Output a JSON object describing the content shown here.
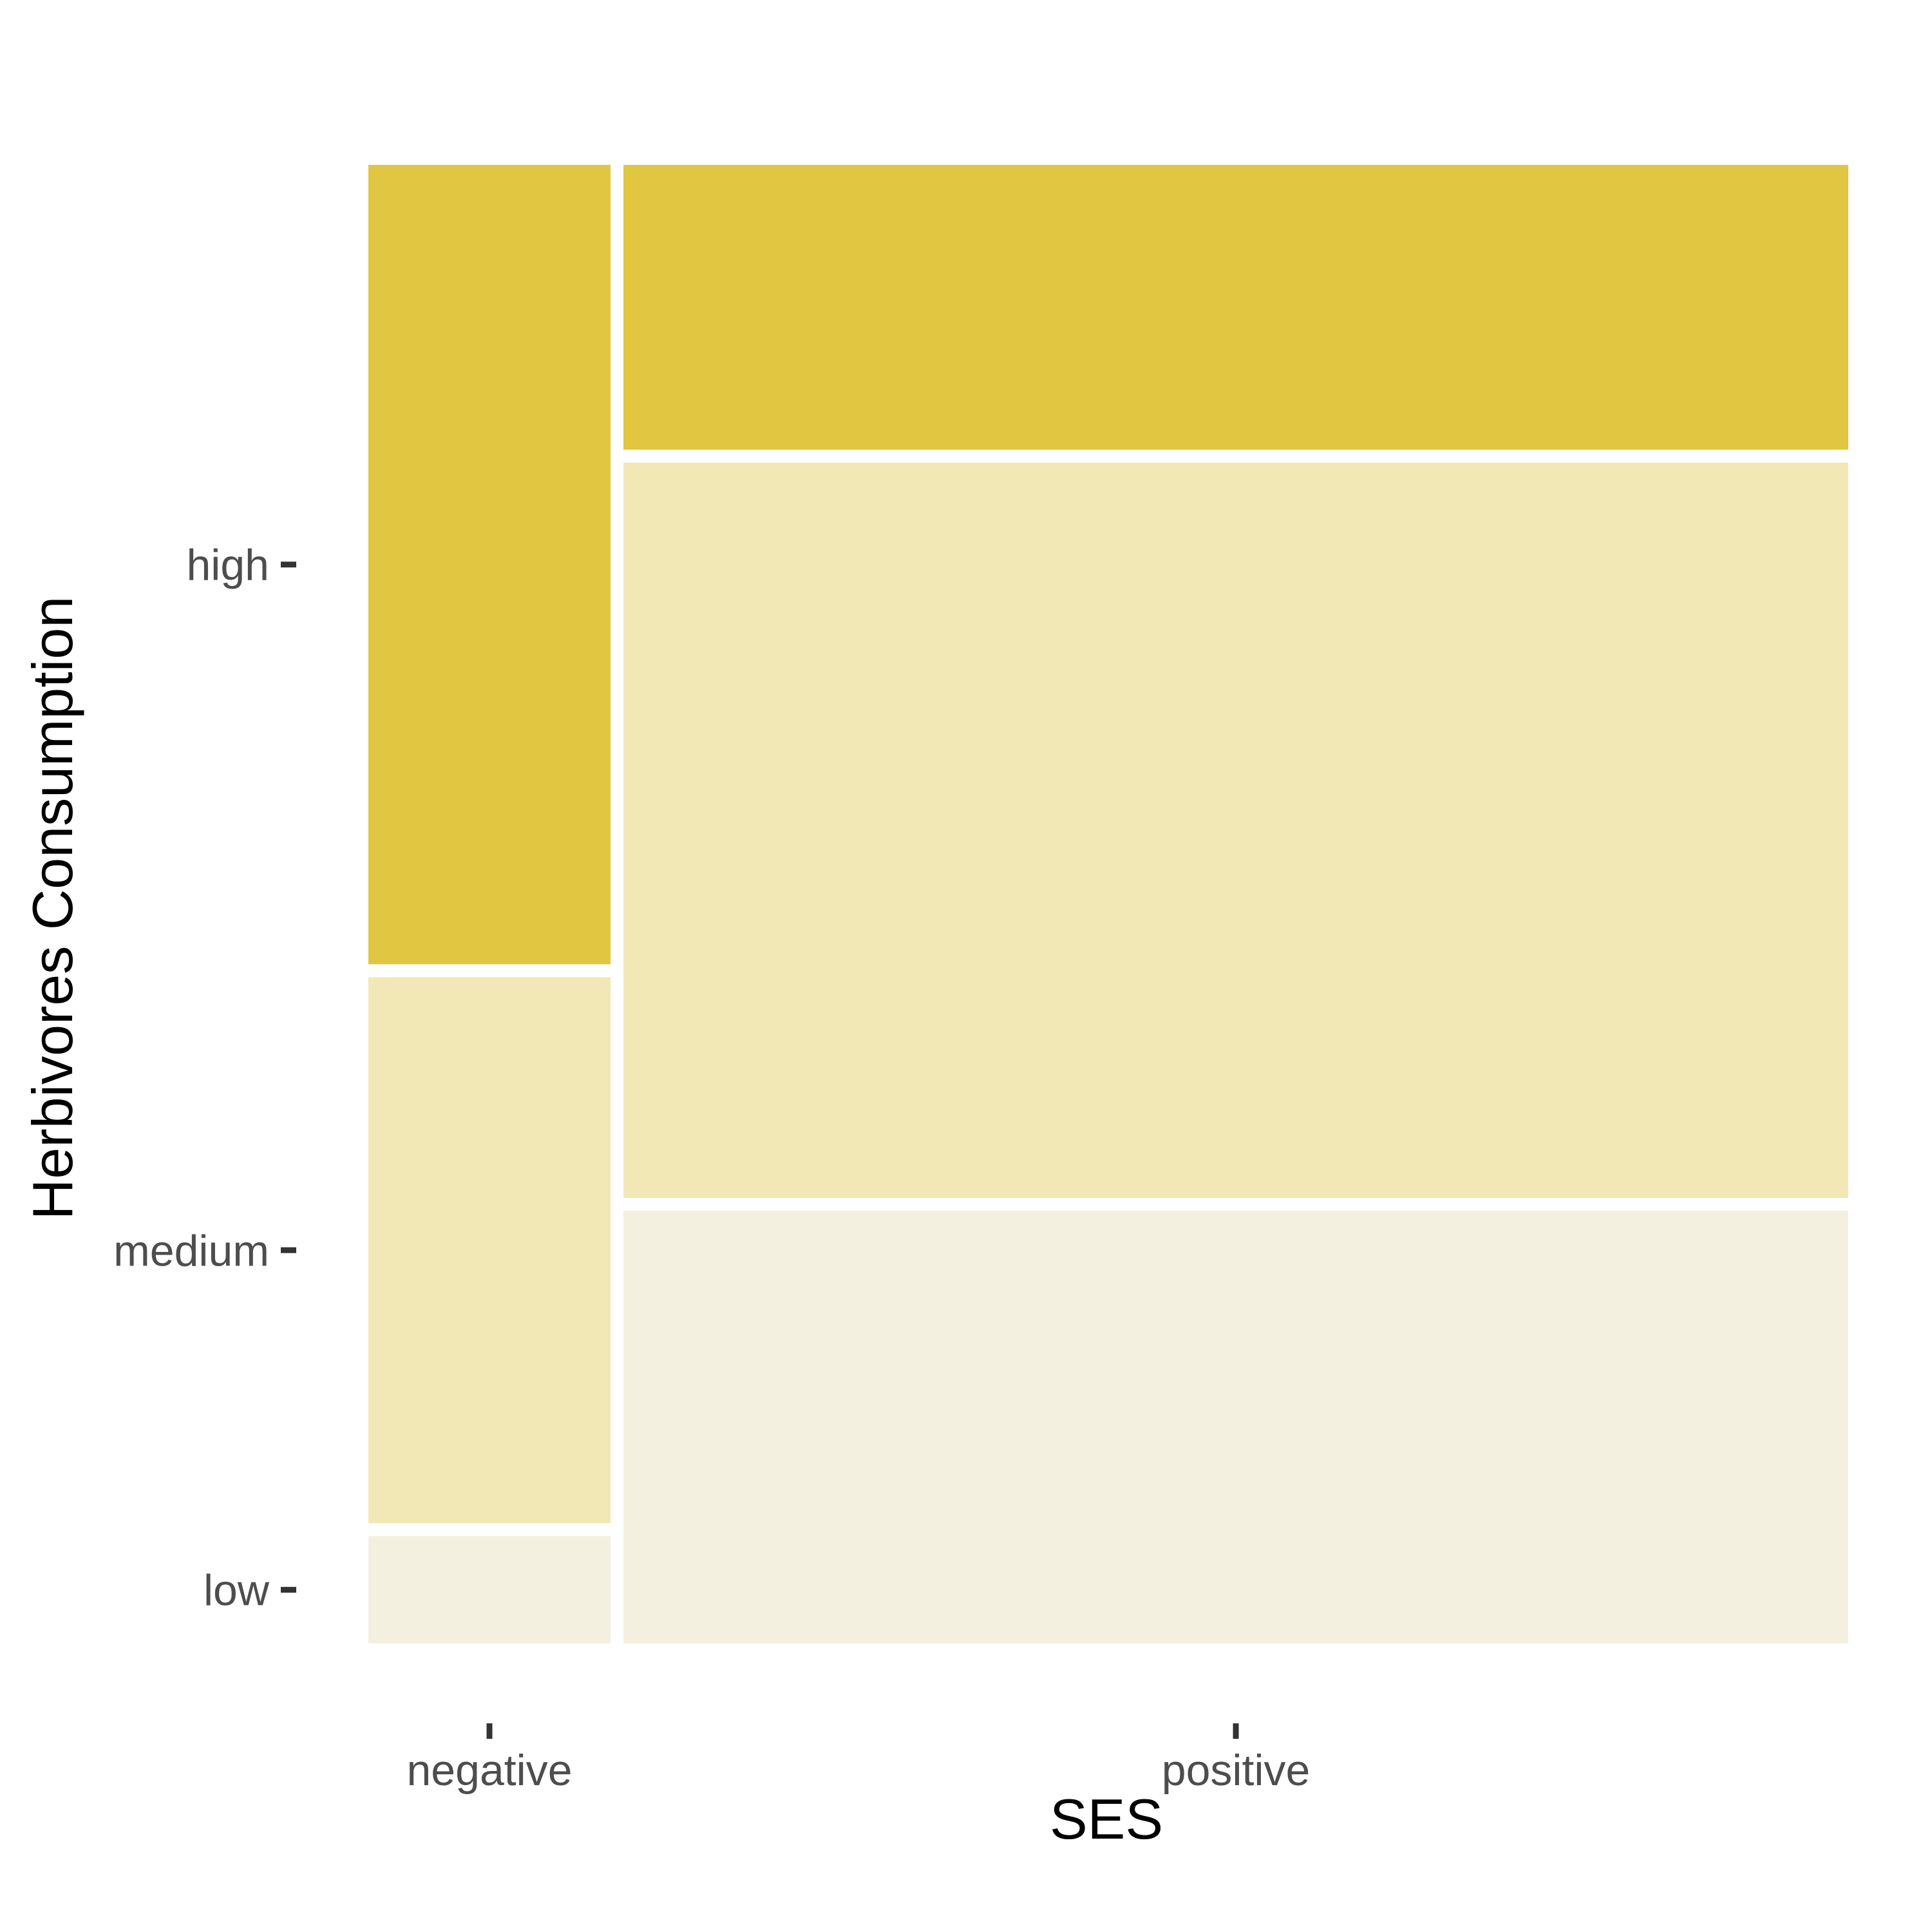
{
  "chart_data": {
    "type": "mosaic",
    "xlabel": "SES",
    "ylabel": "Herbivores Consumption",
    "x_categories": [
      "negative",
      "positive"
    ],
    "y_categories": [
      "low",
      "medium",
      "high"
    ],
    "x_proportions": {
      "negative": 0.168,
      "positive": 0.832
    },
    "cells": [
      {
        "x": "negative",
        "y": "low",
        "proportion": 0.077
      },
      {
        "x": "negative",
        "y": "medium",
        "proportion": 0.378
      },
      {
        "x": "negative",
        "y": "high",
        "proportion": 0.545
      },
      {
        "x": "positive",
        "y": "low",
        "proportion": 0.297
      },
      {
        "x": "positive",
        "y": "medium",
        "proportion": 0.506
      },
      {
        "x": "positive",
        "y": "high",
        "proportion": 0.197
      }
    ],
    "y_tick_labels": [
      "low",
      "medium",
      "high"
    ],
    "x_tick_labels": [
      "negative",
      "positive"
    ],
    "colors": {
      "high": "#e0c641",
      "medium": "#f2e8b6",
      "low": "#f3f0e0"
    },
    "grid": false,
    "legend": "none"
  }
}
